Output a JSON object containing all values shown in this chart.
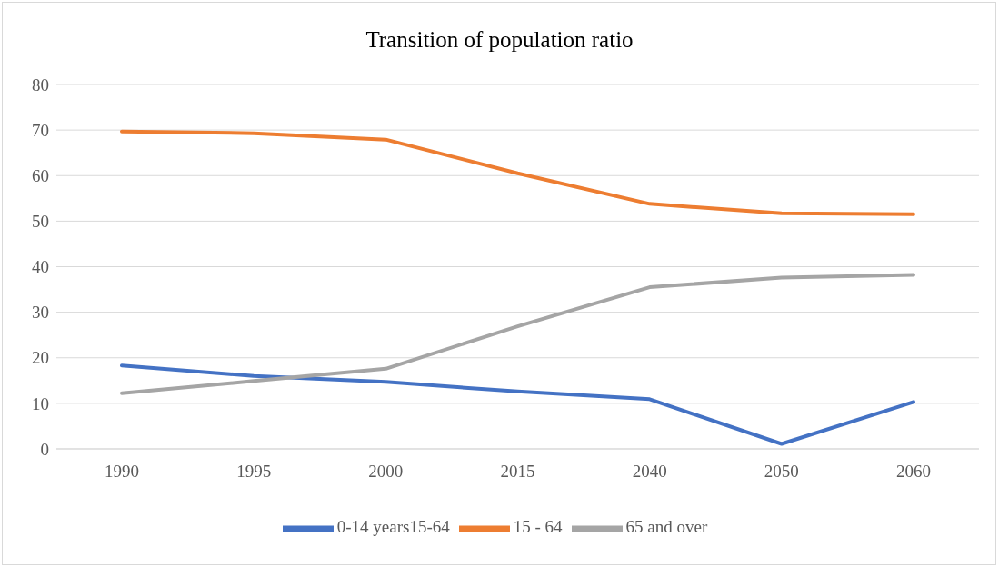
{
  "chart_data": {
    "type": "line",
    "title": "Transition of population ratio",
    "categories": [
      "1990",
      "1995",
      "2000",
      "2015",
      "2040",
      "2050",
      "2060"
    ],
    "series": [
      {
        "name": "0-14 years15-64",
        "color": "#4472c4",
        "values": [
          18.3,
          16.0,
          14.7,
          12.6,
          10.9,
          1.1,
          10.3
        ]
      },
      {
        "name": "15 - 64",
        "color": "#ed7d31",
        "values": [
          69.7,
          69.3,
          67.9,
          60.5,
          53.8,
          51.7,
          51.5
        ]
      },
      {
        "name": "65 and over",
        "color": "#a5a5a5",
        "values": [
          12.2,
          14.9,
          17.6,
          26.9,
          35.5,
          37.6,
          38.2
        ]
      }
    ],
    "ylim": [
      0,
      80
    ],
    "yticks": [
      0,
      10,
      20,
      30,
      40,
      50,
      60,
      70,
      80
    ],
    "grid": "y",
    "legend": "bottom",
    "marker": "none",
    "line_style": "solid"
  }
}
